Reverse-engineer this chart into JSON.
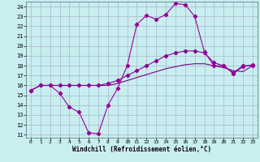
{
  "bg_color": "#c8eef0",
  "grid_color": "#aab4cc",
  "line_color1": "#990099",
  "line_color2": "#880099",
  "line_color3": "#770088",
  "xlim": [
    -0.5,
    23.5
  ],
  "ylim": [
    10.7,
    24.5
  ],
  "xticks": [
    0,
    1,
    2,
    3,
    4,
    5,
    6,
    7,
    8,
    9,
    10,
    11,
    12,
    13,
    14,
    15,
    16,
    17,
    18,
    19,
    20,
    21,
    22,
    23
  ],
  "yticks": [
    11,
    12,
    13,
    14,
    15,
    16,
    17,
    18,
    19,
    20,
    21,
    22,
    23,
    24
  ],
  "xlabel": "Windchill (Refroidissement éolien,°C)",
  "line1_x": [
    0,
    1,
    2,
    3,
    4,
    5,
    6,
    7,
    8,
    9,
    10,
    11,
    12,
    13,
    14,
    15,
    16,
    17,
    18,
    19,
    20,
    21,
    22,
    23
  ],
  "line1_y": [
    15.5,
    16.0,
    16.0,
    15.2,
    13.8,
    13.3,
    11.2,
    11.1,
    14.0,
    15.7,
    18.0,
    22.2,
    23.1,
    22.7,
    23.2,
    24.3,
    24.2,
    23.0,
    19.4,
    18.0,
    18.0,
    17.2,
    17.9,
    18.1
  ],
  "line2_x": [
    0,
    1,
    2,
    3,
    4,
    5,
    6,
    7,
    8,
    9,
    10,
    11,
    12,
    13,
    14,
    15,
    16,
    17,
    18,
    19,
    20,
    21,
    22,
    23
  ],
  "line2_y": [
    15.5,
    16.0,
    16.0,
    16.0,
    16.0,
    16.0,
    16.0,
    16.0,
    16.2,
    16.5,
    17.0,
    17.5,
    18.0,
    18.5,
    19.0,
    19.3,
    19.5,
    19.5,
    19.3,
    18.3,
    18.0,
    17.3,
    18.0,
    18.0
  ],
  "line3_x": [
    0,
    1,
    2,
    3,
    4,
    5,
    6,
    7,
    8,
    9,
    10,
    11,
    12,
    13,
    14,
    15,
    16,
    17,
    18,
    19,
    20,
    21,
    22,
    23
  ],
  "line3_y": [
    15.5,
    16.0,
    16.0,
    16.0,
    16.0,
    16.0,
    16.0,
    16.0,
    16.0,
    16.2,
    16.5,
    16.8,
    17.1,
    17.4,
    17.7,
    17.9,
    18.1,
    18.2,
    18.2,
    18.0,
    17.8,
    17.5,
    17.4,
    18.0
  ]
}
